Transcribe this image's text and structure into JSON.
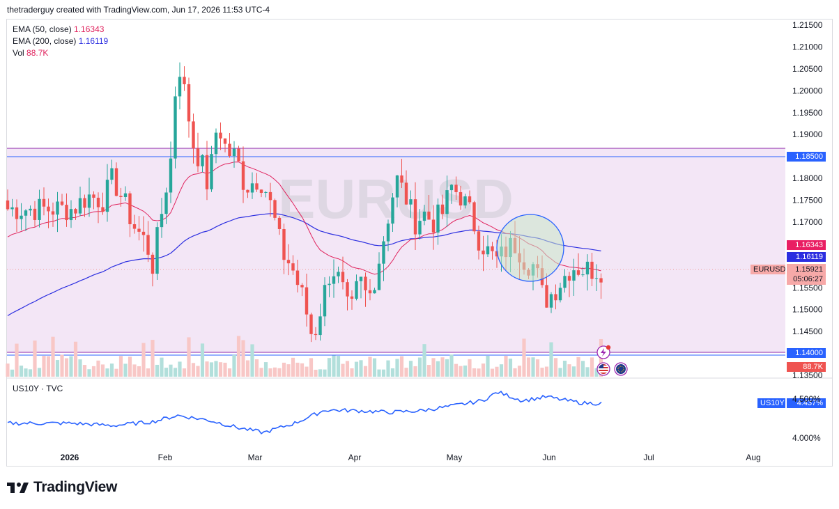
{
  "header": {
    "text": "thetraderguy created with TradingView.com, Jun 17, 2026 11:53 UTC-4"
  },
  "legend": {
    "ema50": {
      "label": "EMA (50, close)",
      "value": "1.16343",
      "color": "#e0245e"
    },
    "ema200": {
      "label": "EMA (200, close)",
      "value": "1.16119",
      "color": "#2b2ee0"
    },
    "vol": {
      "label": "Vol",
      "value": "88.7K",
      "color": "#e0245e"
    }
  },
  "watermark": "EURUSD",
  "lower_pane": {
    "label": "US10Y · TVC",
    "tag_name": "US10Y",
    "tag_value": "4.437%",
    "tick_450": "4.500%",
    "tick_400": "4.000%"
  },
  "price_tags": {
    "resistance": "1.18500",
    "ema50": "1.16343",
    "ema200": "1.16119",
    "symbol": "EURUSD",
    "last": "1.15921",
    "countdown": "05:06:27",
    "support": "1.14000",
    "volume": "88.7K"
  },
  "colors": {
    "up": "#26a69a",
    "down": "#ef5350",
    "zone": "#f3e5f5",
    "line": "#8e24aa",
    "blue_line": "#2962ff"
  },
  "footer": {
    "brand": "TradingView"
  },
  "chart_data": [
    {
      "type": "candlestick",
      "symbol": "EURUSD",
      "y_ticks": [
        "1.21500",
        "1.21000",
        "1.20500",
        "1.20000",
        "1.19500",
        "1.19000",
        "1.18000",
        "1.17500",
        "1.17000",
        "1.15500",
        "1.15000",
        "1.14500",
        "1.13500"
      ],
      "x_ticks": [
        "2026",
        "Feb",
        "Mar",
        "Apr",
        "May",
        "Jun",
        "Jul",
        "Aug"
      ],
      "ylim": [
        1.1345,
        1.2165
      ],
      "horizontal_lines": [
        1.187,
        1.185,
        1.14,
        1.1393
      ],
      "shaded_zone": [
        1.14,
        1.187
      ],
      "approx_close_path": [
        {
          "x": "2026-01-02",
          "y": 1.173
        },
        {
          "x": "2026-01-07",
          "y": 1.176
        },
        {
          "x": "2026-01-12",
          "y": 1.175
        },
        {
          "x": "2026-01-15",
          "y": 1.18
        },
        {
          "x": "2026-01-19",
          "y": 1.174
        },
        {
          "x": "2026-01-22",
          "y": 1.169
        },
        {
          "x": "2026-01-26",
          "y": 1.165
        },
        {
          "x": "2026-01-28",
          "y": 1.16
        },
        {
          "x": "2026-02-01",
          "y": 1.177
        },
        {
          "x": "2026-02-03",
          "y": 1.185
        },
        {
          "x": "2026-02-05",
          "y": 1.208
        },
        {
          "x": "2026-02-08",
          "y": 1.197
        },
        {
          "x": "2026-02-10",
          "y": 1.188
        },
        {
          "x": "2026-02-13",
          "y": 1.183
        },
        {
          "x": "2026-02-15",
          "y": 1.178
        },
        {
          "x": "2026-02-18",
          "y": 1.193
        },
        {
          "x": "2026-02-21",
          "y": 1.186
        },
        {
          "x": "2026-02-24",
          "y": 1.185
        },
        {
          "x": "2026-02-27",
          "y": 1.178
        },
        {
          "x": "2026-03-03",
          "y": 1.18
        },
        {
          "x": "2026-03-05",
          "y": 1.179
        },
        {
          "x": "2026-03-08",
          "y": 1.172
        },
        {
          "x": "2026-03-11",
          "y": 1.163
        },
        {
          "x": "2026-03-14",
          "y": 1.16
        },
        {
          "x": "2026-03-18",
          "y": 1.152
        },
        {
          "x": "2026-03-21",
          "y": 1.143
        },
        {
          "x": "2026-03-24",
          "y": 1.152
        },
        {
          "x": "2026-03-27",
          "y": 1.16
        },
        {
          "x": "2026-03-30",
          "y": 1.156
        },
        {
          "x": "2026-04-02",
          "y": 1.148
        },
        {
          "x": "2026-04-05",
          "y": 1.157
        },
        {
          "x": "2026-04-08",
          "y": 1.152
        },
        {
          "x": "2026-04-11",
          "y": 1.16
        },
        {
          "x": "2026-04-14",
          "y": 1.17
        },
        {
          "x": "2026-04-17",
          "y": 1.18
        },
        {
          "x": "2026-04-20",
          "y": 1.176
        },
        {
          "x": "2026-04-23",
          "y": 1.17
        },
        {
          "x": "2026-04-26",
          "y": 1.172
        },
        {
          "x": "2026-04-29",
          "y": 1.17
        },
        {
          "x": "2026-05-02",
          "y": 1.172
        },
        {
          "x": "2026-05-05",
          "y": 1.178
        },
        {
          "x": "2026-05-08",
          "y": 1.176
        },
        {
          "x": "2026-05-11",
          "y": 1.172
        },
        {
          "x": "2026-05-14",
          "y": 1.166
        },
        {
          "x": "2026-05-17",
          "y": 1.163
        },
        {
          "x": "2026-05-20",
          "y": 1.161
        },
        {
          "x": "2026-05-23",
          "y": 1.164
        },
        {
          "x": "2026-05-26",
          "y": 1.165
        },
        {
          "x": "2026-05-29",
          "y": 1.161
        },
        {
          "x": "2026-06-01",
          "y": 1.16
        },
        {
          "x": "2026-06-04",
          "y": 1.152
        },
        {
          "x": "2026-06-07",
          "y": 1.154
        },
        {
          "x": "2026-06-10",
          "y": 1.157
        },
        {
          "x": "2026-06-13",
          "y": 1.16
        },
        {
          "x": "2026-06-17",
          "y": 1.1592
        }
      ],
      "ema50_last": 1.16343,
      "ema200_last": 1.16119
    },
    {
      "type": "line",
      "series": [
        {
          "name": "US10Y",
          "last": 4.437
        }
      ],
      "y_ticks": [
        "4.500%",
        "4.000%"
      ],
      "approx_path": [
        {
          "x": "2026-01-02",
          "y": 4.18
        },
        {
          "x": "2026-01-15",
          "y": 4.15
        },
        {
          "x": "2026-01-28",
          "y": 4.2
        },
        {
          "x": "2026-02-05",
          "y": 4.28
        },
        {
          "x": "2026-02-15",
          "y": 4.22
        },
        {
          "x": "2026-02-25",
          "y": 4.12
        },
        {
          "x": "2026-03-05",
          "y": 4.06
        },
        {
          "x": "2026-03-15",
          "y": 4.18
        },
        {
          "x": "2026-03-25",
          "y": 4.35
        },
        {
          "x": "2026-04-05",
          "y": 4.34
        },
        {
          "x": "2026-04-15",
          "y": 4.32
        },
        {
          "x": "2026-04-25",
          "y": 4.34
        },
        {
          "x": "2026-05-05",
          "y": 4.4
        },
        {
          "x": "2026-05-15",
          "y": 4.47
        },
        {
          "x": "2026-05-20",
          "y": 4.58
        },
        {
          "x": "2026-05-28",
          "y": 4.47
        },
        {
          "x": "2026-06-05",
          "y": 4.52
        },
        {
          "x": "2026-06-10",
          "y": 4.48
        },
        {
          "x": "2026-06-17",
          "y": 4.437
        }
      ]
    }
  ]
}
